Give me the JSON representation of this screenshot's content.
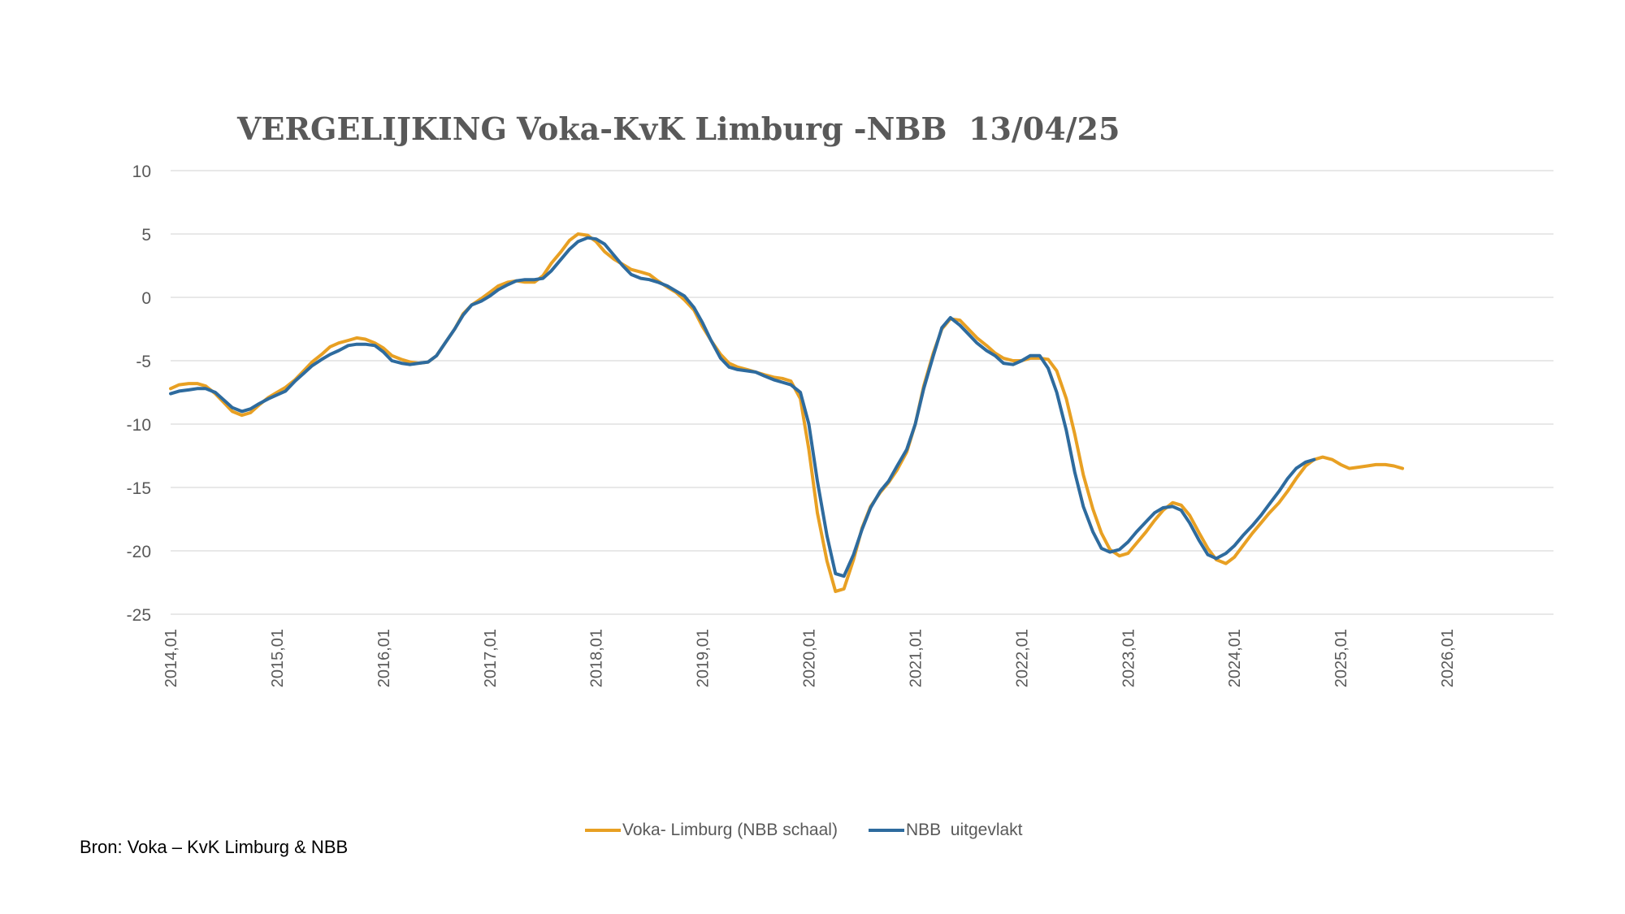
{
  "title": {
    "part1": "VERGELIJKING",
    "part2": "Voka-KvK Limburg -NBB",
    "part3": "13/04/25"
  },
  "source": "Bron: Voka – KvK Limburg & NBB",
  "chart_data": {
    "type": "line",
    "title": "VERGELIJKING Voka-KvK Limburg -NBB 13/04/25",
    "xlabel": "",
    "ylabel": "",
    "ylim": [
      -25,
      10
    ],
    "yticks": [
      "10",
      "5",
      "0",
      "-5",
      "-10",
      "-15",
      "-20",
      "-25"
    ],
    "xticks": [
      "2014,01",
      "2015,01",
      "2016,01",
      "2017,01",
      "2018,01",
      "2019,01",
      "2020,01",
      "2021,01",
      "2022,01",
      "2023,01",
      "2024,01",
      "2025,01",
      "2026,01"
    ],
    "x_start_year": 2014,
    "x_end_year": 2027,
    "grid": true,
    "legend_position": "bottom",
    "series": [
      {
        "name": "Voka- Limburg (NBB schaal)",
        "color": "#E8A023",
        "points": [
          [
            2014.0,
            -7.2
          ],
          [
            2014.08,
            -6.9
          ],
          [
            2014.17,
            -6.8
          ],
          [
            2014.25,
            -6.8
          ],
          [
            2014.33,
            -7.0
          ],
          [
            2014.42,
            -7.6
          ],
          [
            2014.5,
            -8.3
          ],
          [
            2014.58,
            -9.0
          ],
          [
            2014.67,
            -9.3
          ],
          [
            2014.75,
            -9.1
          ],
          [
            2014.83,
            -8.5
          ],
          [
            2014.92,
            -7.9
          ],
          [
            2015.0,
            -7.5
          ],
          [
            2015.08,
            -7.1
          ],
          [
            2015.17,
            -6.5
          ],
          [
            2015.25,
            -5.8
          ],
          [
            2015.33,
            -5.1
          ],
          [
            2015.42,
            -4.5
          ],
          [
            2015.5,
            -3.9
          ],
          [
            2015.58,
            -3.6
          ],
          [
            2015.67,
            -3.4
          ],
          [
            2015.75,
            -3.2
          ],
          [
            2015.83,
            -3.3
          ],
          [
            2015.92,
            -3.6
          ],
          [
            2016.0,
            -4.0
          ],
          [
            2016.08,
            -4.6
          ],
          [
            2016.17,
            -4.9
          ],
          [
            2016.25,
            -5.1
          ],
          [
            2016.33,
            -5.2
          ],
          [
            2016.42,
            -5.1
          ],
          [
            2016.5,
            -4.6
          ],
          [
            2016.58,
            -3.6
          ],
          [
            2016.67,
            -2.5
          ],
          [
            2016.75,
            -1.3
          ],
          [
            2016.83,
            -0.6
          ],
          [
            2016.92,
            -0.1
          ],
          [
            2017.0,
            0.4
          ],
          [
            2017.08,
            0.9
          ],
          [
            2017.17,
            1.2
          ],
          [
            2017.25,
            1.3
          ],
          [
            2017.33,
            1.2
          ],
          [
            2017.42,
            1.2
          ],
          [
            2017.5,
            1.7
          ],
          [
            2017.58,
            2.7
          ],
          [
            2017.67,
            3.6
          ],
          [
            2017.75,
            4.5
          ],
          [
            2017.83,
            5.0
          ],
          [
            2017.92,
            4.9
          ],
          [
            2018.0,
            4.4
          ],
          [
            2018.08,
            3.6
          ],
          [
            2018.17,
            3.0
          ],
          [
            2018.25,
            2.6
          ],
          [
            2018.33,
            2.2
          ],
          [
            2018.42,
            2.0
          ],
          [
            2018.5,
            1.8
          ],
          [
            2018.58,
            1.3
          ],
          [
            2018.67,
            0.8
          ],
          [
            2018.75,
            0.4
          ],
          [
            2018.83,
            -0.2
          ],
          [
            2018.92,
            -1.0
          ],
          [
            2019.0,
            -2.3
          ],
          [
            2019.08,
            -3.4
          ],
          [
            2019.17,
            -4.5
          ],
          [
            2019.25,
            -5.2
          ],
          [
            2019.33,
            -5.5
          ],
          [
            2019.42,
            -5.7
          ],
          [
            2019.5,
            -5.9
          ],
          [
            2019.58,
            -6.1
          ],
          [
            2019.67,
            -6.3
          ],
          [
            2019.75,
            -6.4
          ],
          [
            2019.83,
            -6.6
          ],
          [
            2019.92,
            -8.0
          ],
          [
            2020.0,
            -12.0
          ],
          [
            2020.08,
            -17.0
          ],
          [
            2020.17,
            -20.8
          ],
          [
            2020.25,
            -23.2
          ],
          [
            2020.33,
            -23.0
          ],
          [
            2020.42,
            -20.7
          ],
          [
            2020.5,
            -18.2
          ],
          [
            2020.58,
            -16.5
          ],
          [
            2020.67,
            -15.4
          ],
          [
            2020.75,
            -14.6
          ],
          [
            2020.83,
            -13.6
          ],
          [
            2020.92,
            -12.2
          ],
          [
            2021.0,
            -10.0
          ],
          [
            2021.08,
            -7.0
          ],
          [
            2021.17,
            -4.4
          ],
          [
            2021.25,
            -2.5
          ],
          [
            2021.33,
            -1.7
          ],
          [
            2021.42,
            -1.8
          ],
          [
            2021.5,
            -2.5
          ],
          [
            2021.58,
            -3.2
          ],
          [
            2021.67,
            -3.8
          ],
          [
            2021.75,
            -4.4
          ],
          [
            2021.83,
            -4.8
          ],
          [
            2021.92,
            -5.0
          ],
          [
            2022.0,
            -5.0
          ],
          [
            2022.08,
            -4.8
          ],
          [
            2022.17,
            -4.8
          ],
          [
            2022.25,
            -4.9
          ],
          [
            2022.33,
            -5.8
          ],
          [
            2022.42,
            -8.0
          ],
          [
            2022.5,
            -10.8
          ],
          [
            2022.58,
            -14.0
          ],
          [
            2022.67,
            -16.7
          ],
          [
            2022.75,
            -18.6
          ],
          [
            2022.83,
            -19.9
          ],
          [
            2022.92,
            -20.4
          ],
          [
            2023.0,
            -20.2
          ],
          [
            2023.08,
            -19.4
          ],
          [
            2023.17,
            -18.5
          ],
          [
            2023.25,
            -17.6
          ],
          [
            2023.33,
            -16.8
          ],
          [
            2023.42,
            -16.2
          ],
          [
            2023.5,
            -16.4
          ],
          [
            2023.58,
            -17.2
          ],
          [
            2023.67,
            -18.6
          ],
          [
            2023.75,
            -19.8
          ],
          [
            2023.83,
            -20.7
          ],
          [
            2023.92,
            -21.0
          ],
          [
            2024.0,
            -20.5
          ],
          [
            2024.08,
            -19.6
          ],
          [
            2024.17,
            -18.6
          ],
          [
            2024.25,
            -17.8
          ],
          [
            2024.33,
            -17.0
          ],
          [
            2024.42,
            -16.2
          ],
          [
            2024.5,
            -15.3
          ],
          [
            2024.58,
            -14.3
          ],
          [
            2024.67,
            -13.3
          ],
          [
            2024.75,
            -12.8
          ],
          [
            2024.83,
            -12.6
          ],
          [
            2024.92,
            -12.8
          ],
          [
            2025.0,
            -13.2
          ],
          [
            2025.08,
            -13.5
          ],
          [
            2025.17,
            -13.4
          ],
          [
            2025.25,
            -13.3
          ],
          [
            2025.33,
            -13.2
          ],
          [
            2025.42,
            -13.2
          ],
          [
            2025.5,
            -13.3
          ],
          [
            2025.58,
            -13.5
          ]
        ]
      },
      {
        "name": "NBB  uitgevlakt",
        "color": "#2E6B9E",
        "points": [
          [
            2014.0,
            -7.6
          ],
          [
            2014.08,
            -7.4
          ],
          [
            2014.17,
            -7.3
          ],
          [
            2014.25,
            -7.2
          ],
          [
            2014.33,
            -7.2
          ],
          [
            2014.42,
            -7.5
          ],
          [
            2014.5,
            -8.1
          ],
          [
            2014.58,
            -8.7
          ],
          [
            2014.67,
            -9.0
          ],
          [
            2014.75,
            -8.8
          ],
          [
            2014.83,
            -8.4
          ],
          [
            2014.92,
            -8.0
          ],
          [
            2015.0,
            -7.7
          ],
          [
            2015.08,
            -7.4
          ],
          [
            2015.17,
            -6.6
          ],
          [
            2015.25,
            -6.0
          ],
          [
            2015.33,
            -5.4
          ],
          [
            2015.42,
            -4.9
          ],
          [
            2015.5,
            -4.5
          ],
          [
            2015.58,
            -4.2
          ],
          [
            2015.67,
            -3.8
          ],
          [
            2015.75,
            -3.7
          ],
          [
            2015.83,
            -3.7
          ],
          [
            2015.92,
            -3.8
          ],
          [
            2016.0,
            -4.3
          ],
          [
            2016.08,
            -5.0
          ],
          [
            2016.17,
            -5.2
          ],
          [
            2016.25,
            -5.3
          ],
          [
            2016.33,
            -5.2
          ],
          [
            2016.42,
            -5.1
          ],
          [
            2016.5,
            -4.6
          ],
          [
            2016.58,
            -3.6
          ],
          [
            2016.67,
            -2.5
          ],
          [
            2016.75,
            -1.4
          ],
          [
            2016.83,
            -0.6
          ],
          [
            2016.92,
            -0.3
          ],
          [
            2017.0,
            0.1
          ],
          [
            2017.08,
            0.6
          ],
          [
            2017.17,
            1.0
          ],
          [
            2017.25,
            1.3
          ],
          [
            2017.33,
            1.4
          ],
          [
            2017.42,
            1.4
          ],
          [
            2017.5,
            1.5
          ],
          [
            2017.58,
            2.1
          ],
          [
            2017.67,
            3.0
          ],
          [
            2017.75,
            3.8
          ],
          [
            2017.83,
            4.4
          ],
          [
            2017.92,
            4.7
          ],
          [
            2018.0,
            4.6
          ],
          [
            2018.08,
            4.2
          ],
          [
            2018.17,
            3.3
          ],
          [
            2018.25,
            2.5
          ],
          [
            2018.33,
            1.8
          ],
          [
            2018.42,
            1.5
          ],
          [
            2018.5,
            1.4
          ],
          [
            2018.58,
            1.2
          ],
          [
            2018.67,
            0.9
          ],
          [
            2018.75,
            0.5
          ],
          [
            2018.83,
            0.1
          ],
          [
            2018.92,
            -0.8
          ],
          [
            2019.0,
            -2.0
          ],
          [
            2019.08,
            -3.4
          ],
          [
            2019.17,
            -4.8
          ],
          [
            2019.25,
            -5.5
          ],
          [
            2019.33,
            -5.7
          ],
          [
            2019.42,
            -5.8
          ],
          [
            2019.5,
            -5.9
          ],
          [
            2019.58,
            -6.2
          ],
          [
            2019.67,
            -6.5
          ],
          [
            2019.75,
            -6.7
          ],
          [
            2019.83,
            -6.9
          ],
          [
            2019.92,
            -7.5
          ],
          [
            2020.0,
            -10.0
          ],
          [
            2020.08,
            -14.5
          ],
          [
            2020.17,
            -18.8
          ],
          [
            2020.25,
            -21.8
          ],
          [
            2020.33,
            -22.0
          ],
          [
            2020.42,
            -20.3
          ],
          [
            2020.5,
            -18.3
          ],
          [
            2020.58,
            -16.6
          ],
          [
            2020.67,
            -15.3
          ],
          [
            2020.75,
            -14.5
          ],
          [
            2020.83,
            -13.3
          ],
          [
            2020.92,
            -12.0
          ],
          [
            2021.0,
            -10.0
          ],
          [
            2021.08,
            -7.2
          ],
          [
            2021.17,
            -4.6
          ],
          [
            2021.25,
            -2.4
          ],
          [
            2021.33,
            -1.6
          ],
          [
            2021.42,
            -2.2
          ],
          [
            2021.5,
            -2.9
          ],
          [
            2021.58,
            -3.6
          ],
          [
            2021.67,
            -4.2
          ],
          [
            2021.75,
            -4.6
          ],
          [
            2021.83,
            -5.2
          ],
          [
            2021.92,
            -5.3
          ],
          [
            2022.0,
            -5.0
          ],
          [
            2022.08,
            -4.6
          ],
          [
            2022.17,
            -4.6
          ],
          [
            2022.25,
            -5.6
          ],
          [
            2022.33,
            -7.5
          ],
          [
            2022.42,
            -10.5
          ],
          [
            2022.5,
            -13.8
          ],
          [
            2022.58,
            -16.5
          ],
          [
            2022.67,
            -18.5
          ],
          [
            2022.75,
            -19.8
          ],
          [
            2022.83,
            -20.1
          ],
          [
            2022.92,
            -19.9
          ],
          [
            2023.0,
            -19.3
          ],
          [
            2023.08,
            -18.5
          ],
          [
            2023.17,
            -17.7
          ],
          [
            2023.25,
            -17.0
          ],
          [
            2023.33,
            -16.6
          ],
          [
            2023.42,
            -16.5
          ],
          [
            2023.5,
            -16.8
          ],
          [
            2023.58,
            -17.8
          ],
          [
            2023.67,
            -19.2
          ],
          [
            2023.75,
            -20.3
          ],
          [
            2023.83,
            -20.6
          ],
          [
            2023.92,
            -20.2
          ],
          [
            2024.0,
            -19.6
          ],
          [
            2024.08,
            -18.8
          ],
          [
            2024.17,
            -18.0
          ],
          [
            2024.25,
            -17.2
          ],
          [
            2024.33,
            -16.3
          ],
          [
            2024.42,
            -15.3
          ],
          [
            2024.5,
            -14.3
          ],
          [
            2024.58,
            -13.5
          ],
          [
            2024.67,
            -13.0
          ],
          [
            2024.75,
            -12.8
          ]
        ]
      }
    ]
  }
}
